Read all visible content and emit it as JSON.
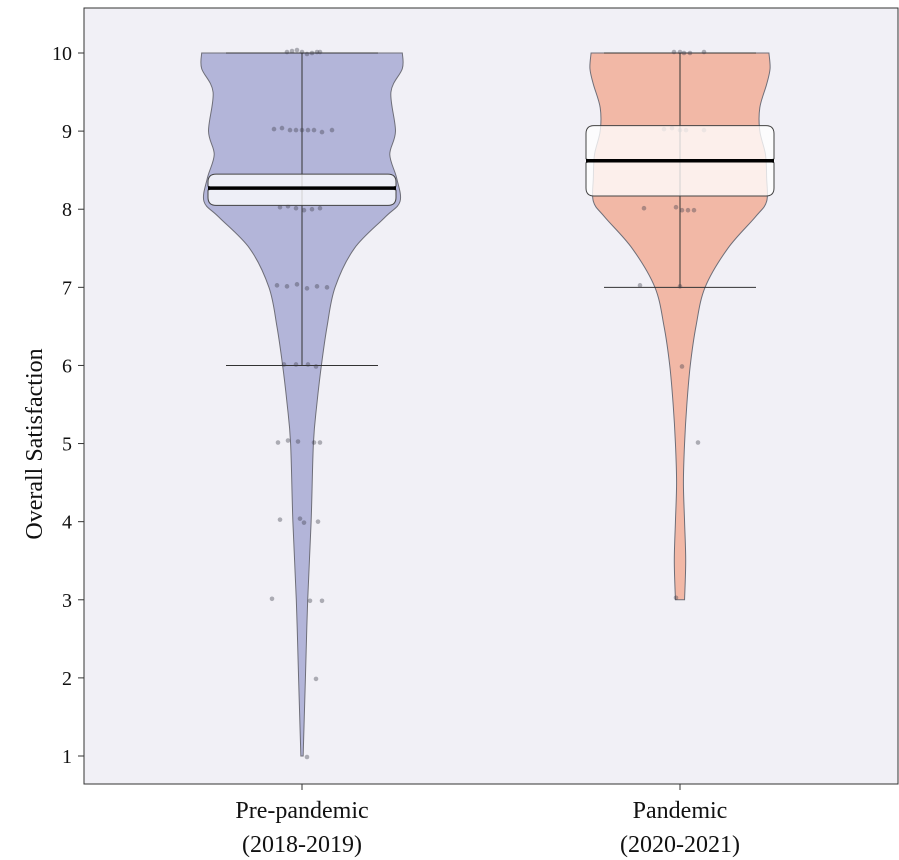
{
  "chart_data": {
    "type": "violin",
    "ylabel": "Overall Satisfaction",
    "ylim": [
      1,
      10
    ],
    "yticks": [
      1,
      2,
      3,
      4,
      5,
      6,
      7,
      8,
      9,
      10
    ],
    "categories": [
      {
        "line1": "Pre-pandemic",
        "line2": "(2018-2019)",
        "color": "#b3b5d9",
        "median": 8.27,
        "ci": [
          8.05,
          8.45
        ],
        "whisker": [
          6,
          10
        ],
        "density": [
          [
            1.0,
            0.01
          ],
          [
            1.5,
            0.02
          ],
          [
            2.0,
            0.03
          ],
          [
            3.0,
            0.05
          ],
          [
            4.0,
            0.08
          ],
          [
            5.0,
            0.1
          ],
          [
            5.5,
            0.13
          ],
          [
            6.0,
            0.17
          ],
          [
            6.5,
            0.22
          ],
          [
            7.0,
            0.29
          ],
          [
            7.5,
            0.46
          ],
          [
            7.9,
            0.73
          ],
          [
            8.1,
            0.86
          ],
          [
            8.4,
            0.83
          ],
          [
            8.7,
            0.77
          ],
          [
            9.0,
            0.82
          ],
          [
            9.5,
            0.78
          ],
          [
            9.8,
            0.88
          ],
          [
            10.0,
            0.88
          ]
        ],
        "points": [
          [
            10,
            15
          ],
          [
            10,
            10
          ],
          [
            10,
            5
          ],
          [
            10,
            0
          ],
          [
            10,
            -5
          ],
          [
            10,
            -10
          ],
          [
            10,
            18
          ],
          [
            10,
            -15
          ],
          [
            9,
            -20
          ],
          [
            9,
            -12
          ],
          [
            9,
            -6
          ],
          [
            9,
            0
          ],
          [
            9,
            6
          ],
          [
            9,
            12
          ],
          [
            9,
            20
          ],
          [
            9,
            30
          ],
          [
            9,
            -28
          ],
          [
            8,
            -22
          ],
          [
            8,
            -14
          ],
          [
            8,
            -6
          ],
          [
            8,
            2
          ],
          [
            8,
            10
          ],
          [
            8,
            18
          ],
          [
            7,
            -25
          ],
          [
            7,
            -15
          ],
          [
            7,
            -5
          ],
          [
            7,
            5
          ],
          [
            7,
            15
          ],
          [
            7,
            25
          ],
          [
            6,
            -18
          ],
          [
            6,
            -6
          ],
          [
            6,
            6
          ],
          [
            6,
            14
          ],
          [
            5,
            -24
          ],
          [
            5,
            -14
          ],
          [
            5,
            -4
          ],
          [
            5,
            12
          ],
          [
            5,
            18
          ],
          [
            4,
            -22
          ],
          [
            4,
            -2
          ],
          [
            4,
            2
          ],
          [
            4,
            16
          ],
          [
            3,
            -30
          ],
          [
            3,
            8
          ],
          [
            3,
            20
          ],
          [
            2,
            14
          ],
          [
            1,
            5
          ]
        ]
      },
      {
        "line1": "Pandemic",
        "line2": "(2020-2021)",
        "color": "#f2b8a6",
        "median": 8.62,
        "ci": [
          8.17,
          9.07
        ],
        "whisker": [
          7,
          10
        ],
        "density": [
          [
            3.0,
            0.04
          ],
          [
            3.5,
            0.05
          ],
          [
            4.0,
            0.04
          ],
          [
            4.5,
            0.03
          ],
          [
            5.0,
            0.04
          ],
          [
            5.5,
            0.06
          ],
          [
            6.0,
            0.09
          ],
          [
            6.5,
            0.14
          ],
          [
            7.0,
            0.22
          ],
          [
            7.5,
            0.42
          ],
          [
            7.9,
            0.66
          ],
          [
            8.1,
            0.76
          ],
          [
            8.4,
            0.76
          ],
          [
            8.7,
            0.75
          ],
          [
            9.0,
            0.7
          ],
          [
            9.3,
            0.7
          ],
          [
            9.6,
            0.76
          ],
          [
            9.8,
            0.79
          ],
          [
            10.0,
            0.78
          ]
        ],
        "points": [
          [
            10,
            -6
          ],
          [
            10,
            0
          ],
          [
            10,
            4
          ],
          [
            10,
            10
          ],
          [
            10,
            24
          ],
          [
            9,
            -16
          ],
          [
            9,
            -8
          ],
          [
            9,
            0
          ],
          [
            9,
            6
          ],
          [
            9,
            24
          ],
          [
            8,
            -36
          ],
          [
            8,
            -4
          ],
          [
            8,
            2
          ],
          [
            8,
            8
          ],
          [
            8,
            14
          ],
          [
            7,
            -40
          ],
          [
            7,
            0
          ],
          [
            6,
            2
          ],
          [
            5,
            18
          ],
          [
            3,
            -4
          ]
        ]
      }
    ]
  }
}
